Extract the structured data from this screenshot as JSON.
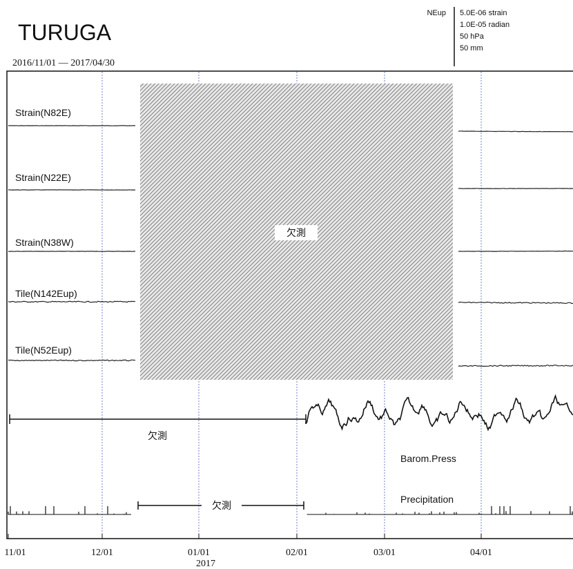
{
  "header": {
    "title": "TURUGA",
    "period": "2016/11/01 — 2017/04/30"
  },
  "scale": {
    "component": "NEup",
    "items": [
      "5.0E-06 strain",
      "1.0E-05 radian",
      "50 hPa",
      "50 mm"
    ]
  },
  "traces": [
    "Strain(N82E)",
    "Strain(N22E)",
    "Strain(N38W)",
    "Tile(N142Eup)",
    "Tile(N52Eup)",
    "Barom.Press",
    "Precipitation"
  ],
  "missing": [
    "欠測",
    "欠測",
    "欠測"
  ],
  "x_axis": {
    "labels": [
      "11/01",
      "12/01",
      "01/01",
      "02/01",
      "03/01",
      "04/01"
    ],
    "year": "2017"
  }
}
